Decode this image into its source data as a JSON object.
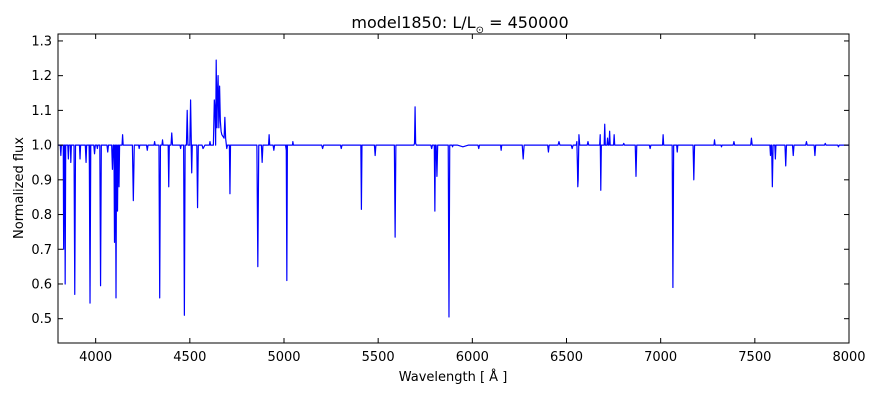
{
  "chart_data": {
    "type": "line",
    "title": {
      "main": "model1850: L/L",
      "subscript": "⊙",
      "rest": " = 450000"
    },
    "xlabel": "Wavelength [ Å ]",
    "ylabel": "Normalized flux",
    "xlim": [
      3800,
      8000
    ],
    "ylim": [
      0.43,
      1.32
    ],
    "xticks": [
      4000,
      4500,
      5000,
      5500,
      6000,
      6500,
      7000,
      7500,
      8000
    ],
    "yticks": [
      0.5,
      0.6,
      0.7,
      0.8,
      0.9,
      1.0,
      1.1,
      1.2,
      1.3
    ],
    "xtick_labels": [
      "4000",
      "4500",
      "5000",
      "5500",
      "6000",
      "6500",
      "7000",
      "7500",
      "8000"
    ],
    "ytick_labels": [
      "0.5",
      "0.6",
      "0.7",
      "0.8",
      "0.9",
      "1.0",
      "1.1",
      "1.2",
      "1.3"
    ],
    "line_color": "#0000ff",
    "grid": false,
    "series": [
      {
        "values": [
          [
            3800,
            1.0
          ],
          [
            3812,
            1.0
          ],
          [
            3815,
            0.97
          ],
          [
            3818,
            1.0
          ],
          [
            3828,
            1.0
          ],
          [
            3830,
            0.7
          ],
          [
            3833,
            1.0
          ],
          [
            3836,
            1.0
          ],
          [
            3838,
            0.6
          ],
          [
            3841,
            1.0
          ],
          [
            3852,
            1.0
          ],
          [
            3855,
            0.96
          ],
          [
            3858,
            1.0
          ],
          [
            3866,
            1.0
          ],
          [
            3868,
            0.95
          ],
          [
            3871,
            1.0
          ],
          [
            3885,
            1.0
          ],
          [
            3889,
            0.57
          ],
          [
            3893,
            1.0
          ],
          [
            3914,
            1.0
          ],
          [
            3917,
            0.96
          ],
          [
            3920,
            1.0
          ],
          [
            3945,
            1.0
          ],
          [
            3949,
            0.95
          ],
          [
            3952,
            1.0
          ],
          [
            3965,
            1.0
          ],
          [
            3968,
            0.89
          ],
          [
            3971,
            1.0
          ],
          [
            3966,
            1.0
          ],
          [
            3970,
            0.545
          ],
          [
            3974,
            1.0
          ],
          [
            3990,
            1.0
          ],
          [
            3994,
            0.975
          ],
          [
            3998,
            1.0
          ],
          [
            4006,
            1.0
          ],
          [
            4009,
            0.99
          ],
          [
            4012,
            1.0
          ],
          [
            4022,
            1.0
          ],
          [
            4026,
            0.595
          ],
          [
            4030,
            1.0
          ],
          [
            4060,
            1.0
          ],
          [
            4064,
            0.98
          ],
          [
            4068,
            1.0
          ],
          [
            4085,
            1.0
          ],
          [
            4089,
            0.93
          ],
          [
            4093,
            1.0
          ],
          [
            4097,
            1.0
          ],
          [
            4100,
            0.72
          ],
          [
            4103,
            1.0
          ],
          [
            4105,
            1.0
          ],
          [
            4108,
            0.56
          ],
          [
            4111,
            1.0
          ],
          [
            4113,
            1.0
          ],
          [
            4116,
            0.81
          ],
          [
            4119,
            1.0
          ],
          [
            4121,
            1.0
          ],
          [
            4124,
            0.88
          ],
          [
            4127,
            1.0
          ],
          [
            4140,
            1.0
          ],
          [
            4143,
            1.03
          ],
          [
            4146,
            1.0
          ],
          [
            4195,
            1.0
          ],
          [
            4200,
            0.84
          ],
          [
            4205,
            1.0
          ],
          [
            4228,
            1.0
          ],
          [
            4231,
            0.99
          ],
          [
            4234,
            1.0
          ],
          [
            4270,
            1.0
          ],
          [
            4274,
            0.985
          ],
          [
            4278,
            1.0
          ],
          [
            4310,
            1.0
          ],
          [
            4313,
            1.01
          ],
          [
            4316,
            1.0
          ],
          [
            4336,
            1.0
          ],
          [
            4340,
            0.56
          ],
          [
            4344,
            1.0
          ],
          [
            4352,
            1.0
          ],
          [
            4355,
            1.015
          ],
          [
            4358,
            1.0
          ],
          [
            4385,
            1.0
          ],
          [
            4388,
            0.88
          ],
          [
            4391,
            1.0
          ],
          [
            4400,
            1.0
          ],
          [
            4404,
            1.035
          ],
          [
            4408,
            1.0
          ],
          [
            4448,
            1.0
          ],
          [
            4451,
            0.99
          ],
          [
            4454,
            1.0
          ],
          [
            4467,
            1.0
          ],
          [
            4471,
            0.51
          ],
          [
            4475,
            1.0
          ],
          [
            4482,
            1.0
          ],
          [
            4486,
            1.1
          ],
          [
            4490,
            1.0
          ],
          [
            4500,
            1.0
          ],
          [
            4504,
            1.13
          ],
          [
            4508,
            1.0
          ],
          [
            4507,
            1.0
          ],
          [
            4510,
            0.92
          ],
          [
            4513,
            1.0
          ],
          [
            4537,
            1.0
          ],
          [
            4541,
            0.82
          ],
          [
            4545,
            1.0
          ],
          [
            4560,
            1.0
          ],
          [
            4565,
            1.0
          ],
          [
            4570,
            0.99
          ],
          [
            4580,
            1.0
          ],
          [
            4604,
            1.0
          ],
          [
            4607,
            1.01
          ],
          [
            4610,
            1.0
          ],
          [
            4625,
            1.0
          ],
          [
            4630,
            1.13
          ],
          [
            4634,
            1.1
          ],
          [
            4637,
            1.0
          ],
          [
            4640,
            1.245
          ],
          [
            4644,
            1.05
          ],
          [
            4647,
            1.15
          ],
          [
            4650,
            1.2
          ],
          [
            4654,
            1.05
          ],
          [
            4658,
            1.17
          ],
          [
            4662,
            1.07
          ],
          [
            4666,
            1.04
          ],
          [
            4670,
            1.03
          ],
          [
            4682,
            1.02
          ],
          [
            4686,
            1.08
          ],
          [
            4690,
            1.02
          ],
          [
            4696,
            0.99
          ],
          [
            4700,
            1.0
          ],
          [
            4710,
            1.0
          ],
          [
            4713,
            0.86
          ],
          [
            4716,
            1.0
          ],
          [
            4780,
            1.0
          ],
          [
            4800,
            1.0
          ],
          [
            4856,
            1.0
          ],
          [
            4861,
            0.65
          ],
          [
            4866,
            1.0
          ],
          [
            4880,
            1.0
          ],
          [
            4884,
            0.95
          ],
          [
            4888,
            1.0
          ],
          [
            4918,
            1.0
          ],
          [
            4921,
            1.03
          ],
          [
            4924,
            1.0
          ],
          [
            4942,
            1.0
          ],
          [
            4946,
            0.985
          ],
          [
            4950,
            1.0
          ],
          [
            5008,
            1.0
          ],
          [
            5012,
            0.985
          ],
          [
            5016,
            1.0
          ],
          [
            5012,
            1.0
          ],
          [
            5015,
            0.61
          ],
          [
            5018,
            1.0
          ],
          [
            5045,
            1.0
          ],
          [
            5047,
            1.01
          ],
          [
            5050,
            1.0
          ],
          [
            5200,
            1.0
          ],
          [
            5205,
            0.99
          ],
          [
            5210,
            1.0
          ],
          [
            5300,
            1.0
          ],
          [
            5304,
            0.99
          ],
          [
            5308,
            1.0
          ],
          [
            5408,
            1.0
          ],
          [
            5411,
            0.815
          ],
          [
            5414,
            1.0
          ],
          [
            5480,
            1.0
          ],
          [
            5484,
            0.97
          ],
          [
            5488,
            1.0
          ],
          [
            5586,
            1.0
          ],
          [
            5590,
            0.735
          ],
          [
            5594,
            1.0
          ],
          [
            5690,
            1.0
          ],
          [
            5693,
            1.005
          ],
          [
            5696,
            1.11
          ],
          [
            5699,
            1.005
          ],
          [
            5703,
            1.0
          ],
          [
            5780,
            1.0
          ],
          [
            5784,
            0.99
          ],
          [
            5788,
            1.0
          ],
          [
            5798,
            1.0
          ],
          [
            5801,
            0.81
          ],
          [
            5804,
            1.0
          ],
          [
            5808,
            1.0
          ],
          [
            5812,
            0.91
          ],
          [
            5816,
            1.0
          ],
          [
            5872,
            1.0
          ],
          [
            5876,
            0.505
          ],
          [
            5880,
            1.0
          ],
          [
            5892,
            1.0
          ],
          [
            5895,
            0.995
          ],
          [
            5898,
            1.0
          ],
          [
            5920,
            1.0
          ],
          [
            5950,
            0.995
          ],
          [
            5980,
            1.0
          ],
          [
            6030,
            1.0
          ],
          [
            6034,
            0.99
          ],
          [
            6038,
            1.0
          ],
          [
            6150,
            1.0
          ],
          [
            6153,
            0.985
          ],
          [
            6156,
            1.0
          ],
          [
            6265,
            1.0
          ],
          [
            6270,
            0.96
          ],
          [
            6275,
            1.0
          ],
          [
            6400,
            1.0
          ],
          [
            6404,
            0.98
          ],
          [
            6408,
            1.0
          ],
          [
            6455,
            1.0
          ],
          [
            6460,
            1.01
          ],
          [
            6465,
            1.0
          ],
          [
            6525,
            1.0
          ],
          [
            6530,
            0.99
          ],
          [
            6535,
            1.0
          ],
          [
            6552,
            1.0
          ],
          [
            6555,
            1.01
          ],
          [
            6558,
            0.94
          ],
          [
            6560,
            0.88
          ],
          [
            6562,
            0.9
          ],
          [
            6566,
            1.03
          ],
          [
            6570,
            1.0
          ],
          [
            6610,
            1.0
          ],
          [
            6614,
            1.01
          ],
          [
            6618,
            1.0
          ],
          [
            6676,
            1.0
          ],
          [
            6679,
            1.03
          ],
          [
            6682,
            0.87
          ],
          [
            6685,
            1.0
          ],
          [
            6700,
            1.0
          ],
          [
            6703,
            1.06
          ],
          [
            6706,
            1.0
          ],
          [
            6715,
            1.0
          ],
          [
            6718,
            1.02
          ],
          [
            6721,
            1.0
          ],
          [
            6726,
            1.0
          ],
          [
            6729,
            1.04
          ],
          [
            6732,
            1.0
          ],
          [
            6750,
            1.0
          ],
          [
            6753,
            1.03
          ],
          [
            6756,
            1.0
          ],
          [
            6800,
            1.0
          ],
          [
            6804,
            1.005
          ],
          [
            6808,
            1.0
          ],
          [
            6865,
            1.0
          ],
          [
            6869,
            0.91
          ],
          [
            6873,
            1.0
          ],
          [
            6940,
            1.0
          ],
          [
            6944,
            0.99
          ],
          [
            6948,
            1.0
          ],
          [
            7010,
            1.0
          ],
          [
            7013,
            1.03
          ],
          [
            7016,
            1.0
          ],
          [
            7061,
            1.0
          ],
          [
            7065,
            0.59
          ],
          [
            7069,
            1.0
          ],
          [
            7085,
            1.0
          ],
          [
            7088,
            0.98
          ],
          [
            7091,
            1.0
          ],
          [
            7172,
            1.0
          ],
          [
            7176,
            0.9
          ],
          [
            7180,
            1.0
          ],
          [
            7283,
            1.0
          ],
          [
            7286,
            1.015
          ],
          [
            7289,
            1.0
          ],
          [
            7320,
            1.0
          ],
          [
            7323,
            0.995
          ],
          [
            7326,
            1.0
          ],
          [
            7385,
            1.0
          ],
          [
            7389,
            1.01
          ],
          [
            7393,
            1.0
          ],
          [
            7478,
            1.0
          ],
          [
            7482,
            1.02
          ],
          [
            7486,
            1.0
          ],
          [
            7580,
            1.0
          ],
          [
            7583,
            0.97
          ],
          [
            7586,
            1.0
          ],
          [
            7589,
            1.0
          ],
          [
            7593,
            0.88
          ],
          [
            7597,
            1.0
          ],
          [
            7606,
            1.0
          ],
          [
            7609,
            0.96
          ],
          [
            7612,
            1.0
          ],
          [
            7660,
            1.0
          ],
          [
            7664,
            0.94
          ],
          [
            7668,
            1.0
          ],
          [
            7700,
            1.0
          ],
          [
            7704,
            0.97
          ],
          [
            7708,
            1.0
          ],
          [
            7770,
            1.0
          ],
          [
            7774,
            1.01
          ],
          [
            7778,
            1.0
          ],
          [
            7815,
            1.0
          ],
          [
            7819,
            0.97
          ],
          [
            7823,
            1.0
          ],
          [
            7870,
            1.0
          ],
          [
            7874,
            1.005
          ],
          [
            7878,
            1.0
          ],
          [
            7940,
            1.0
          ],
          [
            7944,
            0.995
          ],
          [
            7948,
            1.0
          ],
          [
            8000,
            1.0
          ]
        ]
      }
    ]
  }
}
